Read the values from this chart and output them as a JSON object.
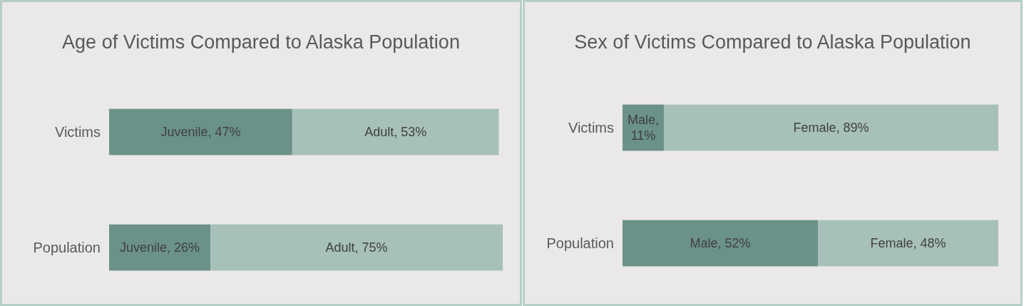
{
  "chart_data": [
    {
      "type": "bar",
      "title": "Age of Victims Compared to Alaska Population",
      "orientation": "horizontal",
      "stacked": true,
      "categories": [
        "Victims",
        "Population"
      ],
      "series": [
        {
          "color": "#6b9289",
          "values": [
            47,
            26
          ],
          "value_labels": [
            "Juvenile, 47%",
            "Juvenile, 26%"
          ]
        },
        {
          "color": "#a7c1ba",
          "values": [
            53,
            75
          ],
          "value_labels": [
            "Adult, 53%",
            "Adult, 75%"
          ]
        }
      ]
    },
    {
      "type": "bar",
      "title": "Sex of Victims Compared to Alaska Population",
      "orientation": "horizontal",
      "stacked": true,
      "categories": [
        "Victims",
        "Population"
      ],
      "series": [
        {
          "color": "#6b9289",
          "values": [
            11,
            52
          ],
          "value_labels": [
            "Male, 11%",
            "Male, 52%"
          ]
        },
        {
          "color": "#a7c1ba",
          "values": [
            89,
            48
          ],
          "value_labels": [
            "Female, 89%",
            "Female, 48%"
          ]
        }
      ]
    }
  ]
}
